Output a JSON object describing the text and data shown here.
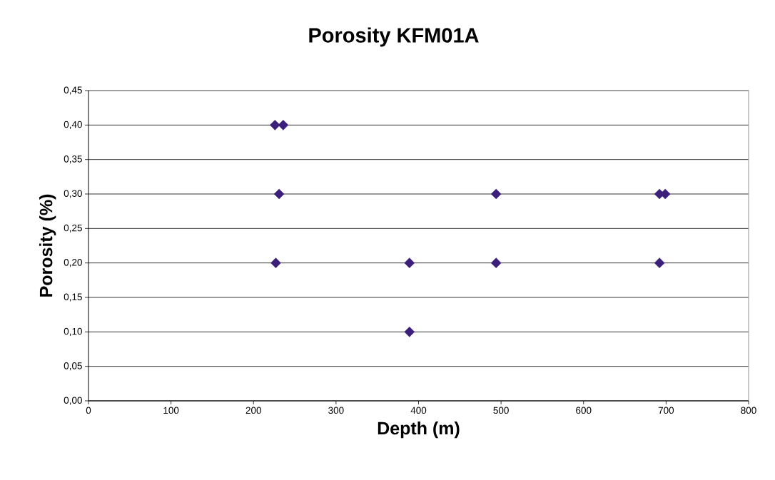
{
  "chart_data": {
    "type": "scatter",
    "title": "Porosity KFM01A",
    "xlabel": "Depth (m)",
    "ylabel": "Porosity (%)",
    "x": [
      226,
      236,
      231,
      227,
      389,
      389,
      494,
      692,
      699,
      494,
      692
    ],
    "values": [
      0.4,
      0.4,
      0.3,
      0.2,
      0.2,
      0.1,
      0.3,
      0.3,
      0.3,
      0.2,
      0.2
    ],
    "color": "#3b1f7a",
    "marker": "diamond",
    "grid": "y",
    "xlim": [
      0,
      800
    ],
    "xticks": [
      0,
      100,
      200,
      300,
      400,
      500,
      600,
      700,
      800
    ],
    "ylim": [
      0,
      0.45
    ],
    "yticks": [
      {
        "value": 0,
        "label": "0,00"
      },
      {
        "value": 0.05,
        "label": "0,05"
      },
      {
        "value": 0.1,
        "label": "0,10"
      },
      {
        "value": 0.15,
        "label": "0,15"
      },
      {
        "value": 0.2,
        "label": "0,20"
      },
      {
        "value": 0.25,
        "label": "0,25"
      },
      {
        "value": 0.3,
        "label": "0,30"
      },
      {
        "value": 0.35,
        "label": "0,35"
      },
      {
        "value": 0.4,
        "label": "0,40"
      },
      {
        "value": 0.45,
        "label": "0,45"
      }
    ]
  }
}
